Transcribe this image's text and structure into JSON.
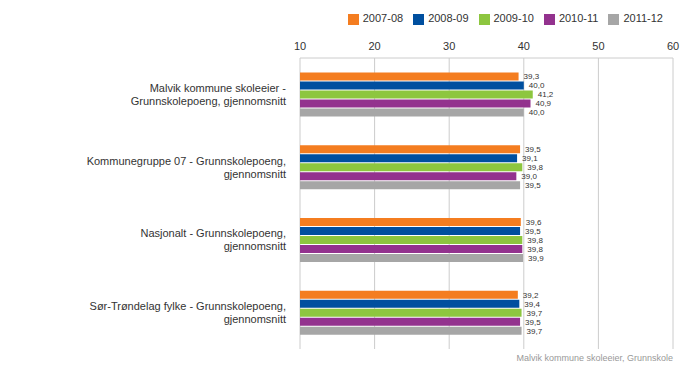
{
  "chart_data": {
    "type": "bar",
    "orientation": "horizontal",
    "grid": true,
    "legend": "top-right",
    "data_labels": true,
    "footnote": "Malvik kommune skoleeier, Grunnskole",
    "categories": [
      "Malvik kommune skoleeier - Grunnskolepoeng, gjennomsnitt",
      "Kommunegruppe 07 - Grunnskolepoeng, gjennomsnitt",
      "Nasjonalt - Grunnskolepoeng, gjennomsnitt",
      "Sør-Trøndelag fylke - Grunnskolepoeng, gjennomsnitt"
    ],
    "xlim": [
      10,
      60
    ],
    "xticks": [
      10,
      20,
      30,
      40,
      50,
      60
    ],
    "series": [
      {
        "name": "2007-08",
        "color": "#f47d20",
        "values": [
          39.3,
          39.5,
          39.6,
          39.2
        ],
        "value_labels": [
          "39,3",
          "39,5",
          "39,6",
          "39,2"
        ]
      },
      {
        "name": "2008-09",
        "color": "#004f9f",
        "values": [
          40.0,
          39.1,
          39.5,
          39.4
        ],
        "value_labels": [
          "40,0",
          "39,1",
          "39,5",
          "39,4"
        ]
      },
      {
        "name": "2009-10",
        "color": "#8dc63f",
        "values": [
          41.2,
          39.8,
          39.8,
          39.7
        ],
        "value_labels": [
          "41,2",
          "39,8",
          "39,8",
          "39,7"
        ]
      },
      {
        "name": "2010-11",
        "color": "#93328e",
        "values": [
          40.9,
          39.0,
          39.8,
          39.5
        ],
        "value_labels": [
          "40,9",
          "39,0",
          "39,8",
          "39,5"
        ]
      },
      {
        "name": "2011-12",
        "color": "#a6a6a6",
        "values": [
          40.0,
          39.5,
          39.9,
          39.7
        ],
        "value_labels": [
          "40,0",
          "39,5",
          "39,9",
          "39,7"
        ]
      }
    ]
  }
}
